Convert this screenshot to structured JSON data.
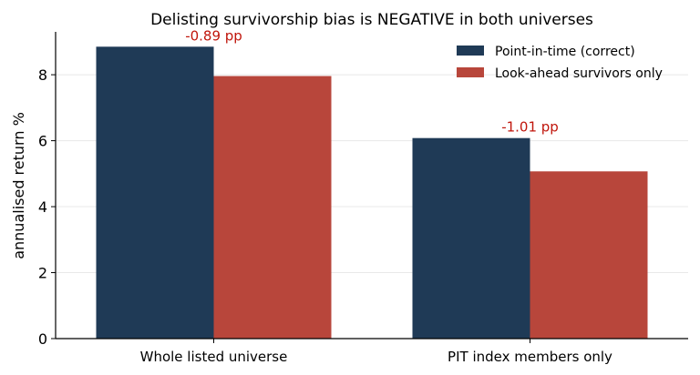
{
  "chart_data": {
    "type": "bar",
    "title": "Delisting survivorship bias is NEGATIVE in both universes",
    "xlabel": "",
    "ylabel": "annualised return %",
    "categories": [
      "Whole listed universe",
      "PIT index members only"
    ],
    "series": [
      {
        "name": "Point-in-time (correct)",
        "values": [
          8.85,
          6.08
        ],
        "color": "#1f3a56"
      },
      {
        "name": "Look-ahead survivors only",
        "values": [
          7.96,
          5.07
        ],
        "color": "#b8463b"
      }
    ],
    "annotations": [
      "-0.89 pp",
      "-1.01 pp"
    ],
    "annotation_color": "#c0160c",
    "ylim": [
      0,
      9.3
    ],
    "yticks": [
      0,
      2,
      4,
      6,
      8
    ],
    "grid": "horizontal",
    "legend": "top-right"
  }
}
